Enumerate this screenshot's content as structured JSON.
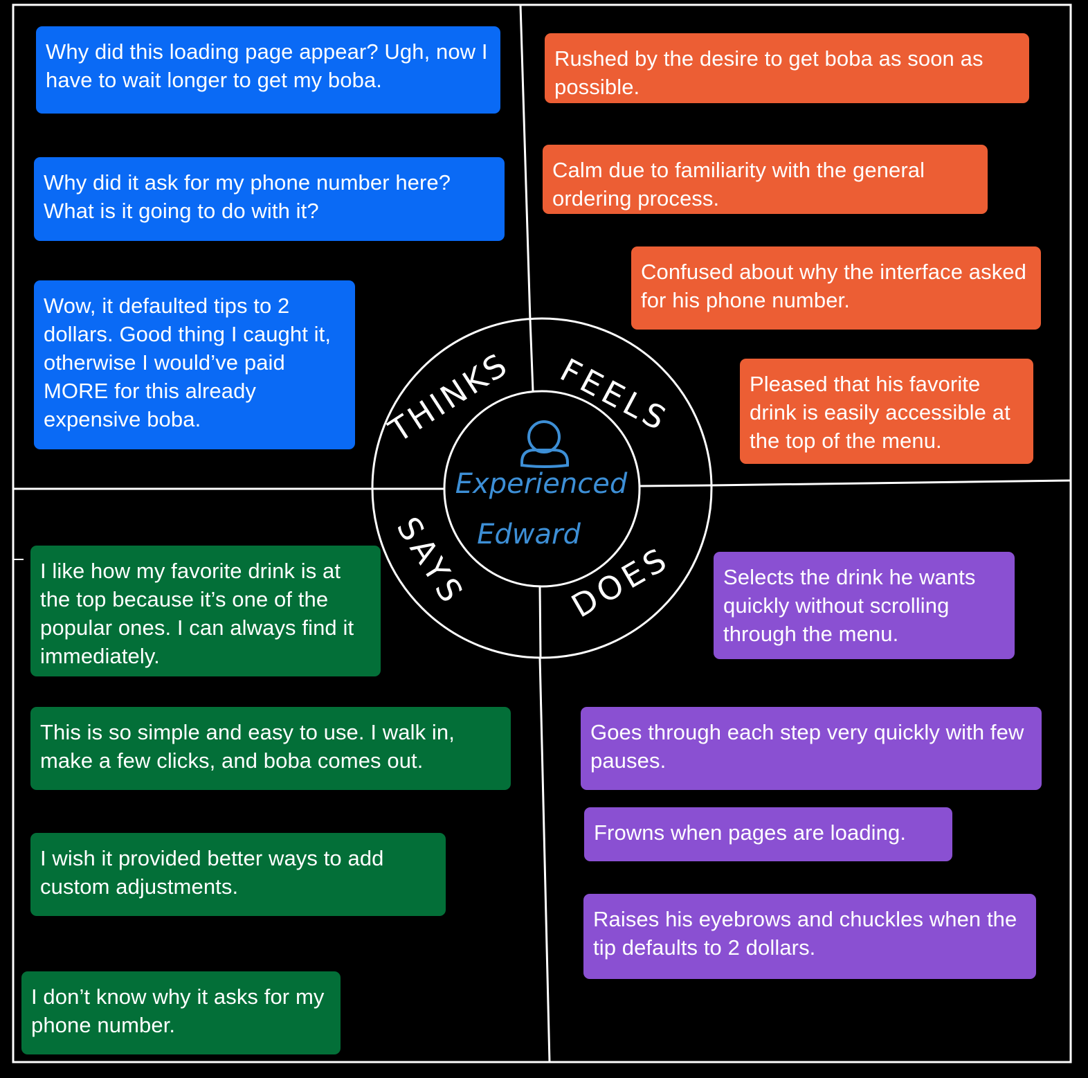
{
  "colors": {
    "background": "#000000",
    "lines": "#ffffff",
    "thinks": "#0a6af5",
    "feels": "#ec5e34",
    "says": "#036f38",
    "does": "#8a50d2",
    "persona": "#3d8fd6"
  },
  "persona": {
    "icon": "user-icon",
    "name_line1": "Experienced",
    "name_line2": "Edward"
  },
  "quadrants": {
    "thinks": {
      "label": "THINKS",
      "notes": [
        "Why did this loading page appear? Ugh, now I have to wait longer to get my boba.",
        "Why did it ask for my phone number here? What is it going to do with it?",
        "Wow, it defaulted tips to 2 dollars. Good thing I caught it, otherwise I would’ve paid MORE for this already expensive boba."
      ]
    },
    "feels": {
      "label": "FEELS",
      "notes": [
        "Rushed by the desire to get boba as soon as possible.",
        "Calm due to familiarity with the general ordering process.",
        "Confused about why the interface asked for his phone number.",
        "Pleased that his favorite drink is easily accessible at the top of the menu."
      ]
    },
    "says": {
      "label": "SAYS",
      "notes": [
        "I like how my favorite drink is at the top because it’s one of the popular ones. I can always find it immediately.",
        "This is so simple and easy to use. I walk in, make a few clicks, and boba comes out.",
        "I wish it provided better ways to add custom adjustments.",
        "I don’t know why it asks for my phone number."
      ]
    },
    "does": {
      "label": "DOES",
      "notes": [
        "Selects the drink he wants quickly without scrolling through the menu.",
        "Goes through each step very quickly with few pauses.",
        "Frowns when pages are loading.",
        "Raises his eyebrows and chuckles when the tip defaults to 2 dollars."
      ]
    }
  }
}
